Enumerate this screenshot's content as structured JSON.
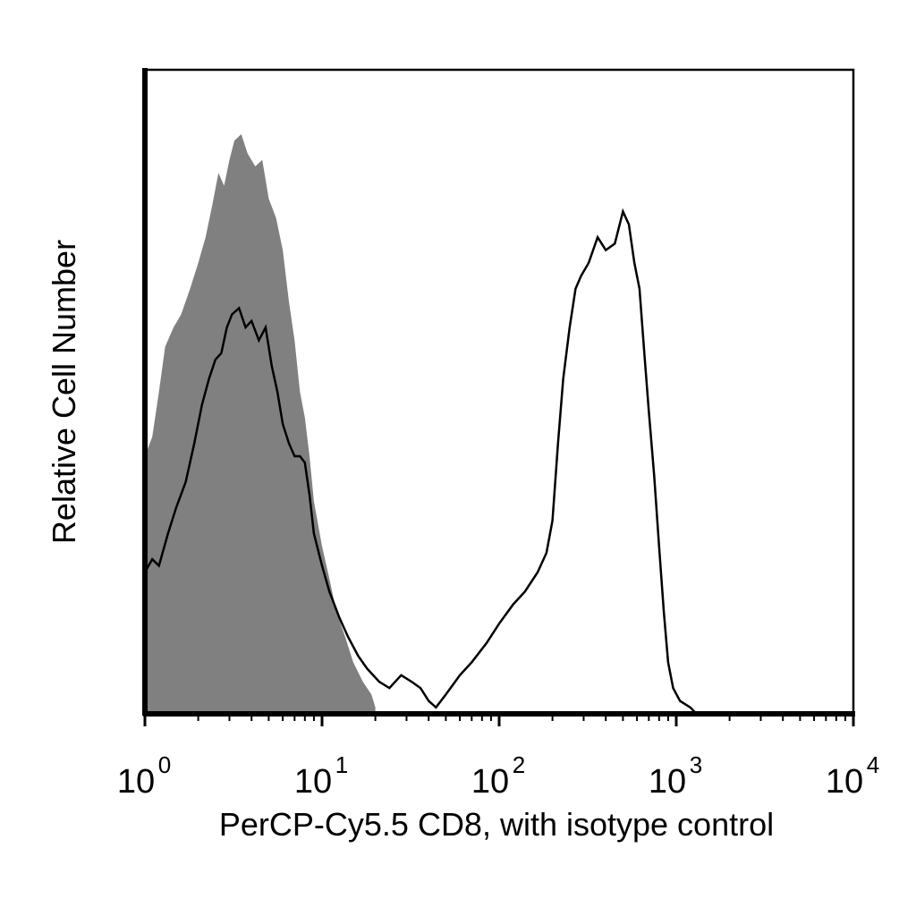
{
  "chart_data": {
    "type": "area",
    "title": "",
    "xlabel": "PerCP-Cy5.5 CD8, with isotype control",
    "ylabel": "Relative Cell Number",
    "xscale": "log",
    "xlim": [
      1,
      10000
    ],
    "ylim": [
      0,
      100
    ],
    "grid": false,
    "legend": "none",
    "x_ticks": [
      {
        "base": "10",
        "exp": "0",
        "value": 1
      },
      {
        "base": "10",
        "exp": "1",
        "value": 10
      },
      {
        "base": "10",
        "exp": "2",
        "value": 100
      },
      {
        "base": "10",
        "exp": "3",
        "value": 1000
      },
      {
        "base": "10",
        "exp": "4",
        "value": 10000
      }
    ],
    "series": [
      {
        "style": "filled",
        "color": "#808080",
        "points": [
          [
            1.0,
            40
          ],
          [
            1.1,
            43
          ],
          [
            1.2,
            50
          ],
          [
            1.3,
            57
          ],
          [
            1.45,
            60
          ],
          [
            1.6,
            62
          ],
          [
            1.8,
            66
          ],
          [
            2.0,
            70
          ],
          [
            2.2,
            74
          ],
          [
            2.4,
            79
          ],
          [
            2.6,
            84
          ],
          [
            2.8,
            82
          ],
          [
            3.0,
            86
          ],
          [
            3.2,
            89
          ],
          [
            3.5,
            90
          ],
          [
            3.8,
            87
          ],
          [
            4.2,
            85
          ],
          [
            4.6,
            86
          ],
          [
            5.0,
            80
          ],
          [
            5.5,
            77
          ],
          [
            6.0,
            72
          ],
          [
            6.5,
            64
          ],
          [
            7.0,
            58
          ],
          [
            7.5,
            50
          ],
          [
            8.0,
            46
          ],
          [
            8.5,
            40
          ],
          [
            9.0,
            33
          ],
          [
            10.0,
            26
          ],
          [
            11.0,
            21
          ],
          [
            12.0,
            16
          ],
          [
            13.5,
            12
          ],
          [
            15.0,
            8
          ],
          [
            17.0,
            5
          ],
          [
            19.0,
            3
          ],
          [
            20.0,
            1
          ]
        ]
      },
      {
        "style": "outline",
        "color": "#000000",
        "points": [
          [
            1.0,
            22
          ],
          [
            1.1,
            24
          ],
          [
            1.2,
            23
          ],
          [
            1.35,
            28
          ],
          [
            1.5,
            32
          ],
          [
            1.7,
            36
          ],
          [
            1.9,
            42
          ],
          [
            2.1,
            48
          ],
          [
            2.3,
            52
          ],
          [
            2.5,
            55
          ],
          [
            2.7,
            56
          ],
          [
            2.9,
            60
          ],
          [
            3.1,
            62
          ],
          [
            3.4,
            63
          ],
          [
            3.7,
            60
          ],
          [
            4.0,
            61
          ],
          [
            4.4,
            58
          ],
          [
            4.8,
            60
          ],
          [
            5.2,
            54
          ],
          [
            5.6,
            50
          ],
          [
            6.0,
            45
          ],
          [
            6.5,
            42
          ],
          [
            7.0,
            40
          ],
          [
            7.5,
            40
          ],
          [
            8.0,
            39
          ],
          [
            8.5,
            34
          ],
          [
            9.0,
            28
          ],
          [
            10.0,
            23
          ],
          [
            11.0,
            19
          ],
          [
            12.5,
            15
          ],
          [
            14.0,
            12
          ],
          [
            16.0,
            9
          ],
          [
            18.0,
            7
          ],
          [
            21.0,
            5
          ],
          [
            24.0,
            4
          ],
          [
            28.0,
            6
          ],
          [
            32.0,
            5
          ],
          [
            36.0,
            4
          ],
          [
            40.0,
            2
          ],
          [
            44.0,
            1
          ],
          [
            50.0,
            3
          ],
          [
            60.0,
            6
          ],
          [
            70.0,
            8
          ],
          [
            85.0,
            11
          ],
          [
            100.0,
            14
          ],
          [
            120.0,
            17
          ],
          [
            140.0,
            19
          ],
          [
            165.0,
            22
          ],
          [
            185.0,
            25
          ],
          [
            200.0,
            30
          ],
          [
            215.0,
            42
          ],
          [
            230.0,
            52
          ],
          [
            250.0,
            60
          ],
          [
            270.0,
            66
          ],
          [
            290.0,
            68
          ],
          [
            320.0,
            70
          ],
          [
            360.0,
            74
          ],
          [
            400.0,
            72
          ],
          [
            450.0,
            73
          ],
          [
            500.0,
            78
          ],
          [
            540.0,
            76
          ],
          [
            580.0,
            70
          ],
          [
            620.0,
            66
          ],
          [
            660.0,
            56
          ],
          [
            700.0,
            47
          ],
          [
            750.0,
            37
          ],
          [
            800.0,
            26
          ],
          [
            850.0,
            16
          ],
          [
            900.0,
            8
          ],
          [
            960.0,
            4
          ],
          [
            1050.0,
            2
          ],
          [
            1200.0,
            1
          ],
          [
            1300.0,
            0
          ]
        ]
      }
    ]
  }
}
